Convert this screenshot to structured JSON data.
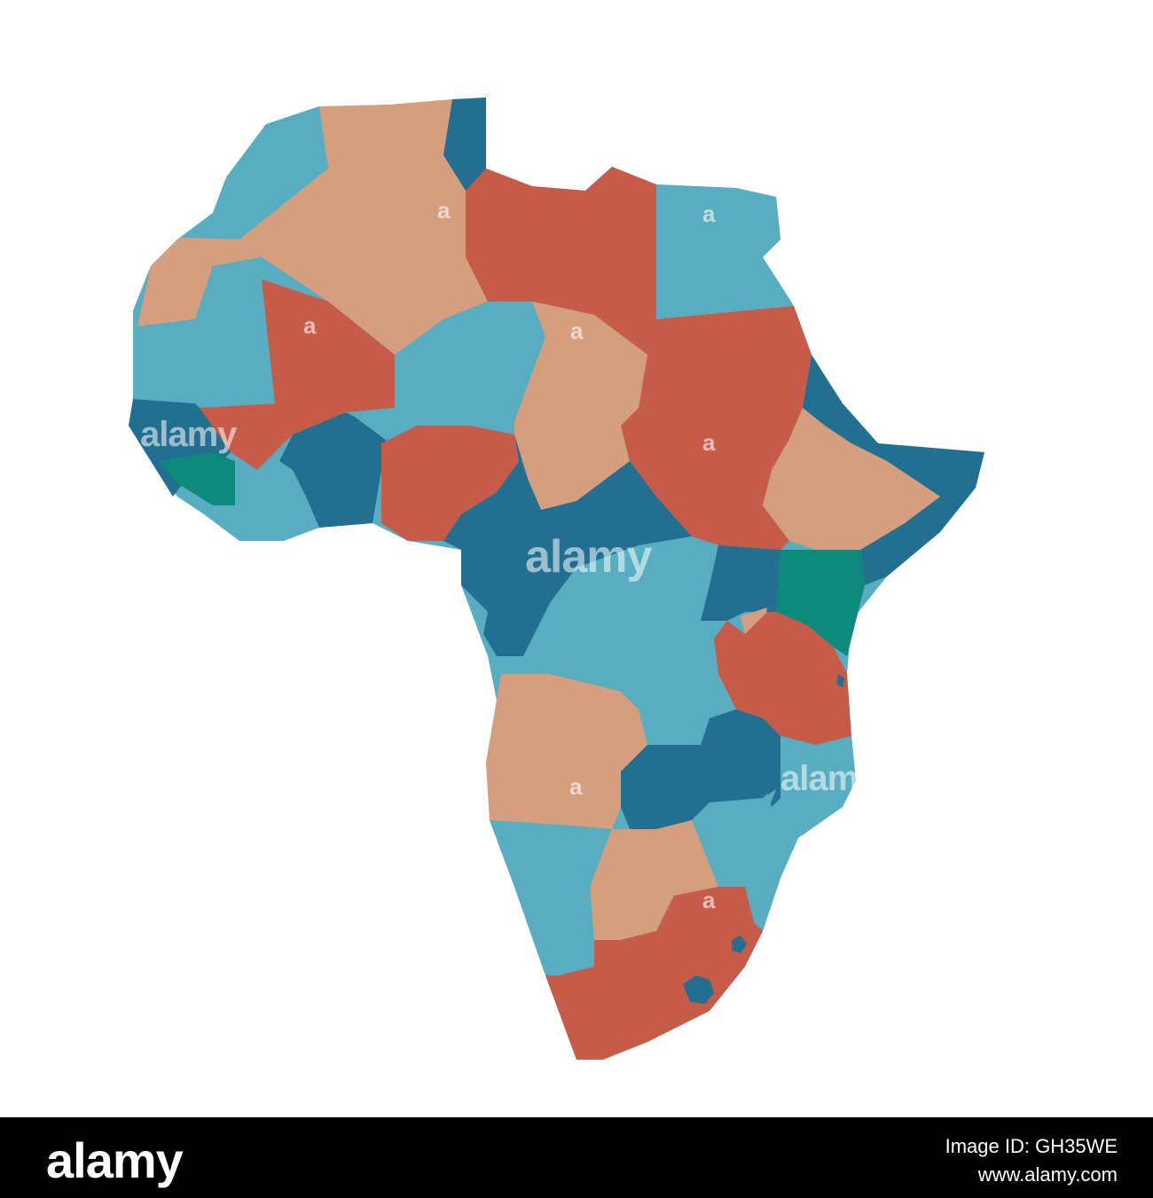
{
  "map": {
    "palette": {
      "teal_light": "#58aec0",
      "tan": "#d49e7f",
      "brick": "#c75b4a",
      "navy": "#226f92",
      "green": "#0d8a7c"
    },
    "watermark": {
      "center_text": "alamy",
      "small_letter": "a"
    }
  },
  "footer": {
    "logo": "alamy",
    "image_id": "Image ID: GH35WE",
    "url": "www.alamy.com"
  }
}
